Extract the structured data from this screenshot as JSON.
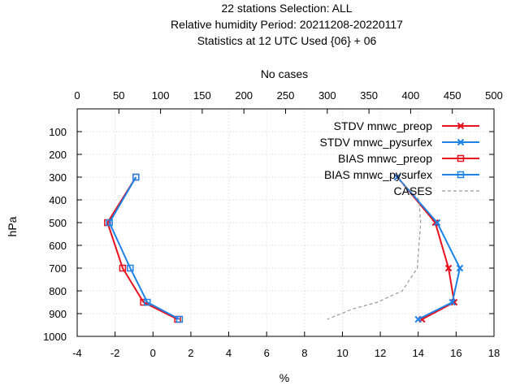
{
  "title_lines": [
    "22 stations Selection: ALL",
    "Relative humidity  Period: 20211208-20220117",
    "Statistics at 12 UTC  Used {06} + 06"
  ],
  "chart_data": {
    "type": "line",
    "xlabel": "%",
    "ylabel": "hPa",
    "x2label": "No cases",
    "xlim": [
      -4,
      18
    ],
    "x2lim": [
      0,
      500
    ],
    "ylim": [
      1000,
      0
    ],
    "y_reversed": true,
    "xticks": [
      -4,
      -2,
      0,
      2,
      4,
      6,
      8,
      10,
      12,
      14,
      16,
      18
    ],
    "x2ticks": [
      0,
      50,
      100,
      150,
      200,
      250,
      300,
      350,
      400,
      450,
      500
    ],
    "yticks": [
      100,
      200,
      300,
      400,
      500,
      600,
      700,
      800,
      900,
      1000
    ],
    "grid": true,
    "legend_position": "top-right",
    "series": [
      {
        "name": "STDV mnwc_preop",
        "color": "#e8101c",
        "marker": "x",
        "dash": false,
        "axis": "x",
        "points": [
          [
            12.9,
            300
          ],
          [
            14.9,
            500
          ],
          [
            15.6,
            700
          ],
          [
            15.9,
            850
          ],
          [
            14.2,
            925
          ]
        ]
      },
      {
        "name": "STDV mnwc_pysurfex",
        "color": "#1e82e6",
        "marker": "x",
        "dash": false,
        "axis": "x",
        "points": [
          [
            12.9,
            300
          ],
          [
            15.0,
            500
          ],
          [
            16.2,
            700
          ],
          [
            15.8,
            850
          ],
          [
            14.0,
            925
          ]
        ]
      },
      {
        "name": "BIAS mnwc_preop",
        "color": "#e8101c",
        "marker": "square",
        "dash": false,
        "axis": "x",
        "points": [
          [
            -0.9,
            300
          ],
          [
            -2.4,
            500
          ],
          [
            -1.6,
            700
          ],
          [
            -0.5,
            850
          ],
          [
            1.3,
            925
          ]
        ]
      },
      {
        "name": "BIAS mnwc_pysurfex",
        "color": "#1e82e6",
        "marker": "square",
        "dash": false,
        "axis": "x",
        "points": [
          [
            -0.9,
            300
          ],
          [
            -2.3,
            500
          ],
          [
            -1.2,
            700
          ],
          [
            -0.3,
            850
          ],
          [
            1.4,
            925
          ]
        ]
      },
      {
        "name": "CASES",
        "color": "#999999",
        "marker": "none",
        "dash": true,
        "axis": "x2",
        "points": [
          [
            385,
            300
          ],
          [
            390,
            330
          ],
          [
            400,
            360
          ],
          [
            410,
            400
          ],
          [
            412,
            500
          ],
          [
            410,
            600
          ],
          [
            408,
            700
          ],
          [
            390,
            800
          ],
          [
            360,
            850
          ],
          [
            330,
            880
          ],
          [
            300,
            925
          ]
        ]
      }
    ]
  }
}
